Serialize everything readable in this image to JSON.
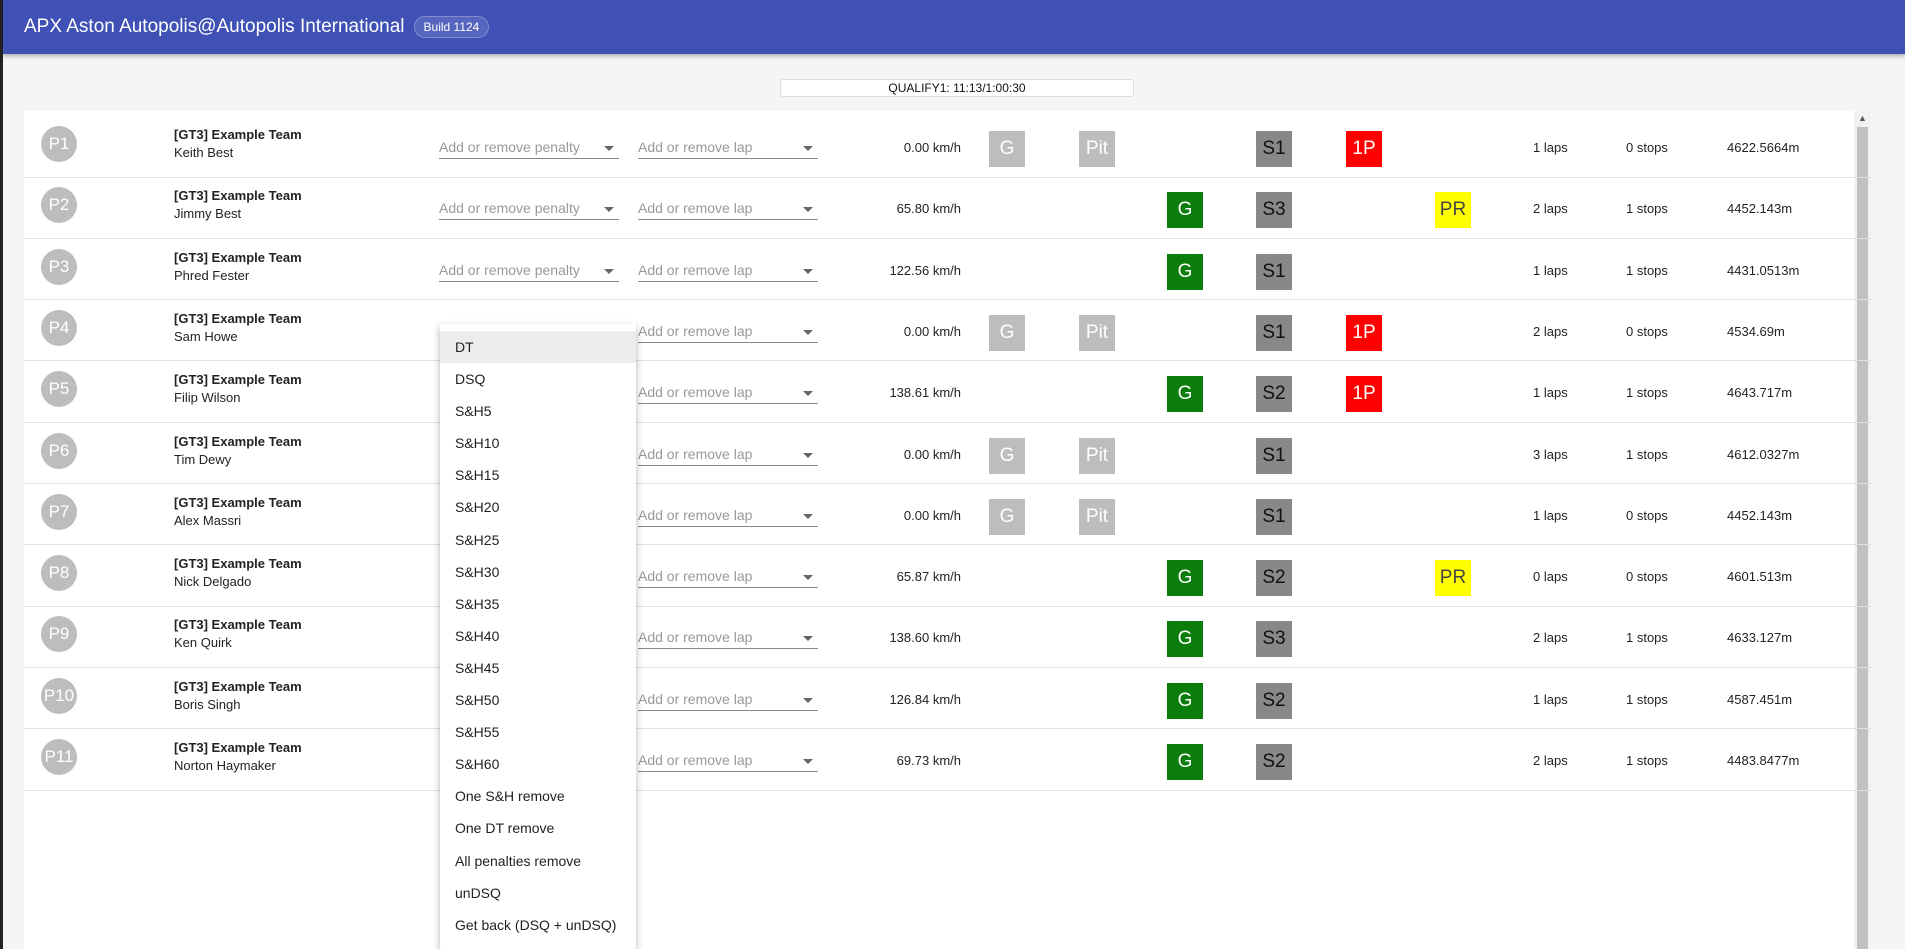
{
  "header": {
    "title": "APX Aston Autopolis@Autopolis International",
    "build": "Build 1124"
  },
  "session": "QUALIFY1: 11:13/1:00:30",
  "placeholders": {
    "penalty": "Add or remove penalty",
    "lap": "Add or remove lap"
  },
  "labels": {
    "g": "G",
    "pit": "Pit",
    "onep": "1P",
    "pr": "PR"
  },
  "colors": {
    "appbar": "#3f51b5",
    "green": "#0a7d0a",
    "red": "#ff0000",
    "yellow": "#ffff00",
    "grey": "#bdbdbd",
    "sector": "#888888"
  },
  "rows": [
    {
      "pos": "P1",
      "team": "[GT3] Example Team",
      "driver": "Keith Best",
      "speed": "0.00 km/h",
      "status": "pit",
      "sector": "S1",
      "flag": "1P",
      "laps": "1 laps",
      "stops": "0 stops",
      "dist": "4622.5664m"
    },
    {
      "pos": "P2",
      "team": "[GT3] Example Team",
      "driver": "Jimmy Best",
      "speed": "65.80 km/h",
      "status": "green",
      "sector": "S3",
      "flag": "PR",
      "laps": "2 laps",
      "stops": "1 stops",
      "dist": "4452.143m"
    },
    {
      "pos": "P3",
      "team": "[GT3] Example Team",
      "driver": "Phred Fester",
      "speed": "122.56 km/h",
      "status": "green",
      "sector": "S1",
      "flag": "",
      "laps": "1 laps",
      "stops": "1 stops",
      "dist": "4431.0513m"
    },
    {
      "pos": "P4",
      "team": "[GT3] Example Team",
      "driver": "Sam Howe",
      "speed": "0.00 km/h",
      "status": "pit",
      "sector": "S1",
      "flag": "1P",
      "laps": "2 laps",
      "stops": "0 stops",
      "dist": "4534.69m"
    },
    {
      "pos": "P5",
      "team": "[GT3] Example Team",
      "driver": "Filip Wilson",
      "speed": "138.61 km/h",
      "status": "green",
      "sector": "S2",
      "flag": "1P",
      "laps": "1 laps",
      "stops": "1 stops",
      "dist": "4643.717m"
    },
    {
      "pos": "P6",
      "team": "[GT3] Example Team",
      "driver": "Tim Dewy",
      "speed": "0.00 km/h",
      "status": "pit",
      "sector": "S1",
      "flag": "",
      "laps": "3 laps",
      "stops": "1 stops",
      "dist": "4612.0327m"
    },
    {
      "pos": "P7",
      "team": "[GT3] Example Team",
      "driver": "Alex Massri",
      "speed": "0.00 km/h",
      "status": "pit",
      "sector": "S1",
      "flag": "",
      "laps": "1 laps",
      "stops": "0 stops",
      "dist": "4452.143m"
    },
    {
      "pos": "P8",
      "team": "[GT3] Example Team",
      "driver": "Nick Delgado",
      "speed": "65.87 km/h",
      "status": "green",
      "sector": "S2",
      "flag": "PR",
      "laps": "0 laps",
      "stops": "0 stops",
      "dist": "4601.513m"
    },
    {
      "pos": "P9",
      "team": "[GT3] Example Team",
      "driver": "Ken Quirk",
      "speed": "138.60 km/h",
      "status": "green",
      "sector": "S3",
      "flag": "",
      "laps": "2 laps",
      "stops": "1 stops",
      "dist": "4633.127m"
    },
    {
      "pos": "P10",
      "team": "[GT3] Example Team",
      "driver": "Boris Singh",
      "speed": "126.84 km/h",
      "status": "green",
      "sector": "S2",
      "flag": "",
      "laps": "1 laps",
      "stops": "1 stops",
      "dist": "4587.451m"
    },
    {
      "pos": "P11",
      "team": "[GT3] Example Team",
      "driver": "Norton Haymaker",
      "speed": "69.73 km/h",
      "status": "green",
      "sector": "S2",
      "flag": "",
      "laps": "2 laps",
      "stops": "1 stops",
      "dist": "4483.8477m"
    }
  ],
  "penalty_menu": {
    "selected": "DT",
    "items": [
      "DT",
      "DSQ",
      "S&H5",
      "S&H10",
      "S&H15",
      "S&H20",
      "S&H25",
      "S&H30",
      "S&H35",
      "S&H40",
      "S&H45",
      "S&H50",
      "S&H55",
      "S&H60",
      "One S&H remove",
      "One DT remove",
      "All penalties remove",
      "unDSQ",
      "Get back (DSQ + unDSQ)"
    ]
  }
}
